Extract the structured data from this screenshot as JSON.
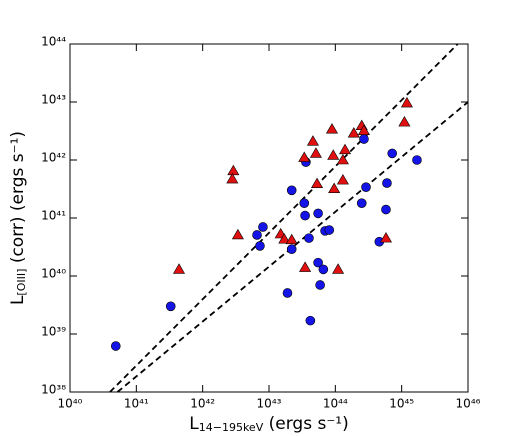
{
  "chart_data": {
    "type": "scatter",
    "xscale": "log",
    "yscale": "log",
    "xlabel": {
      "main": "L",
      "sub": "14−195keV",
      "rest": " (ergs s⁻¹)"
    },
    "ylabel": {
      "main": "L",
      "sub": "[OIII]",
      "rest": " (corr) (ergs s⁻¹)"
    },
    "xlim": [
      1e+40,
      1e+46
    ],
    "ylim": [
      1e+38,
      1e+44
    ],
    "xticks": [
      {
        "value": 1e+40,
        "label": "10⁴⁰"
      },
      {
        "value": 1e+41,
        "label": "10⁴¹"
      },
      {
        "value": 1e+42,
        "label": "10⁴²"
      },
      {
        "value": 1e+43,
        "label": "10⁴³"
      },
      {
        "value": 1e+44,
        "label": "10⁴⁴"
      },
      {
        "value": 1e+45,
        "label": "10⁴⁵"
      },
      {
        "value": 1e+46,
        "label": "10⁴⁶"
      }
    ],
    "yticks": [
      {
        "value": 1e+38,
        "label": "10³⁸"
      },
      {
        "value": 1e+39,
        "label": "10³⁹"
      },
      {
        "value": 1e+40,
        "label": "10⁴⁰"
      },
      {
        "value": 1e+41,
        "label": "10⁴¹"
      },
      {
        "value": 1e+42,
        "label": "10⁴²"
      },
      {
        "value": 1e+43,
        "label": "10⁴³"
      },
      {
        "value": 1e+44,
        "label": "10⁴⁴"
      }
    ],
    "series": [
      {
        "color": "#1414e6",
        "marker": "circle",
        "x": [
          4.9e+40,
          3.3e+41,
          7.3e+42,
          6.6e+42,
          8.1e+42,
          2.2e+43,
          2.2e+43,
          1.9e+43,
          3.6e+43,
          3.4e+43,
          3.5e+43,
          4e+43,
          4.2e+43,
          5.5e+43,
          5.5e+43,
          5.9e+43,
          6.6e+43,
          7e+43,
          8.1e+43,
          2.5e+44,
          2.9e+44,
          2.7e+44,
          4.6e+44,
          5.8e+44,
          6e+44,
          7.2e+44,
          1.7e+45
        ],
        "y": [
          6.2e+38,
          3e+39,
          3.3e+40,
          5.1e+40,
          7e+40,
          3e+41,
          2.9e+40,
          5.1e+39,
          9.2e+41,
          1.8e+41,
          1.1e+41,
          4.5e+40,
          1.7e+39,
          1.2e+41,
          1.7e+40,
          7e+39,
          1.3e+40,
          6e+40,
          6.2e+40,
          1.8e+41,
          3.4e+41,
          2.3e+42,
          3.9e+40,
          1.4e+41,
          4e+41,
          1.3e+42,
          1e+42
        ]
      },
      {
        "color": "#e01010",
        "marker": "triangle",
        "x": [
          4.4e+41,
          3.4e+42,
          2.9e+42,
          2.8e+42,
          1.5e+43,
          1.7e+43,
          2.2e+43,
          3.4e+43,
          3.5e+43,
          4.6e+43,
          5.1e+43,
          5.3e+43,
          8.9e+43,
          9.3e+43,
          9.6e+43,
          1.1e+44,
          1.3e+44,
          1.3e+44,
          1.4e+44,
          1.9e+44,
          2.5e+44,
          2.7e+44,
          5.8e+44,
          1.1e+45,
          1.2e+45
        ],
        "y": [
          1.3e+40,
          5.1e+40,
          6.5e+41,
          4.7e+41,
          5.3e+40,
          4.3e+40,
          4.2e+40,
          1.1e+42,
          1.4e+40,
          2.1e+42,
          1.3e+42,
          3.9e+41,
          3.4e+42,
          1.2e+42,
          3.2e+41,
          1.3e+40,
          1e+42,
          4.5e+41,
          1.5e+42,
          2.9e+42,
          3.9e+42,
          3.2e+42,
          4.5e+40,
          4.5e+42,
          9.6e+42
        ]
      }
    ],
    "lines": [
      {
        "x": [
          4e+40,
          7e+45
        ],
        "y": [
          1e+38,
          1e+44
        ]
      },
      {
        "x": [
          5.2e+40,
          1e+46
        ],
        "y": [
          1e+38,
          1e+43
        ]
      }
    ]
  }
}
